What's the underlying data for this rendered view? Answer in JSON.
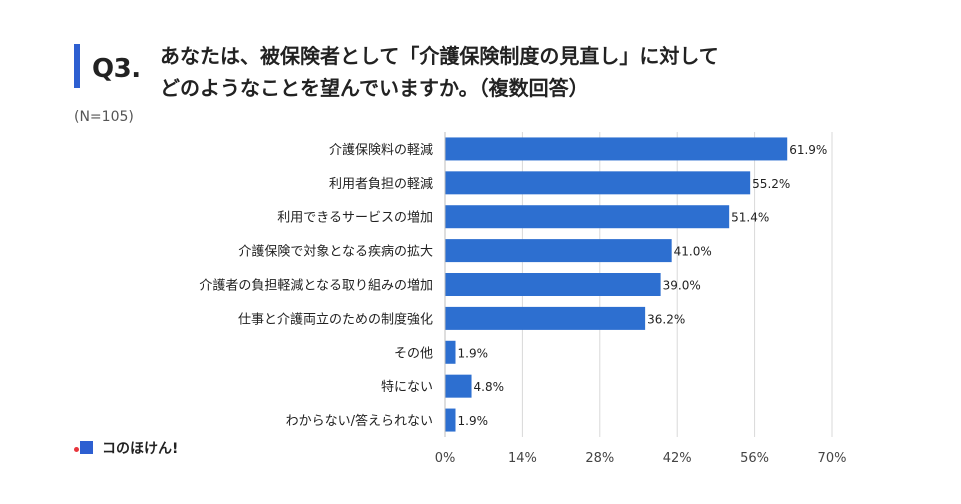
{
  "header": {
    "question": "Q3.",
    "title_line1": "あなたは、被保険者として「介護保険制度の見直し」に対して",
    "title_line2": "どのようなことを望んでいますか。（複数回答）",
    "sample": "(N=105)"
  },
  "logo": {
    "text": "コのほけん!",
    "icon": "konohoken-logo-icon"
  },
  "colors": {
    "bar": "#2d6fd0",
    "accent": "#2d5fd1",
    "grid": "#d9d9d9"
  },
  "chart_data": {
    "type": "bar",
    "orientation": "horizontal",
    "categories": [
      "介護保険料の軽減",
      "利用者負担の軽減",
      "利用できるサービスの増加",
      "介護保険で対象となる疾病の拡大",
      "介護者の負担軽減となる取り組みの増加",
      "仕事と介護両立のための制度強化",
      "その他",
      "特にない",
      "わからない/答えられない"
    ],
    "values": [
      61.9,
      55.2,
      51.4,
      41.0,
      39.0,
      36.2,
      1.9,
      4.8,
      1.9
    ],
    "value_labels": [
      "61.9%",
      "55.2%",
      "51.4%",
      "41.0%",
      "39.0%",
      "36.2%",
      "1.9%",
      "4.8%",
      "1.9%"
    ],
    "xlim": [
      0,
      70
    ],
    "ticks": [
      0,
      14,
      28,
      42,
      56,
      70
    ],
    "tick_labels": [
      "0%",
      "14%",
      "28%",
      "42%",
      "56%",
      "70%"
    ],
    "grid": true,
    "legend": "none"
  }
}
